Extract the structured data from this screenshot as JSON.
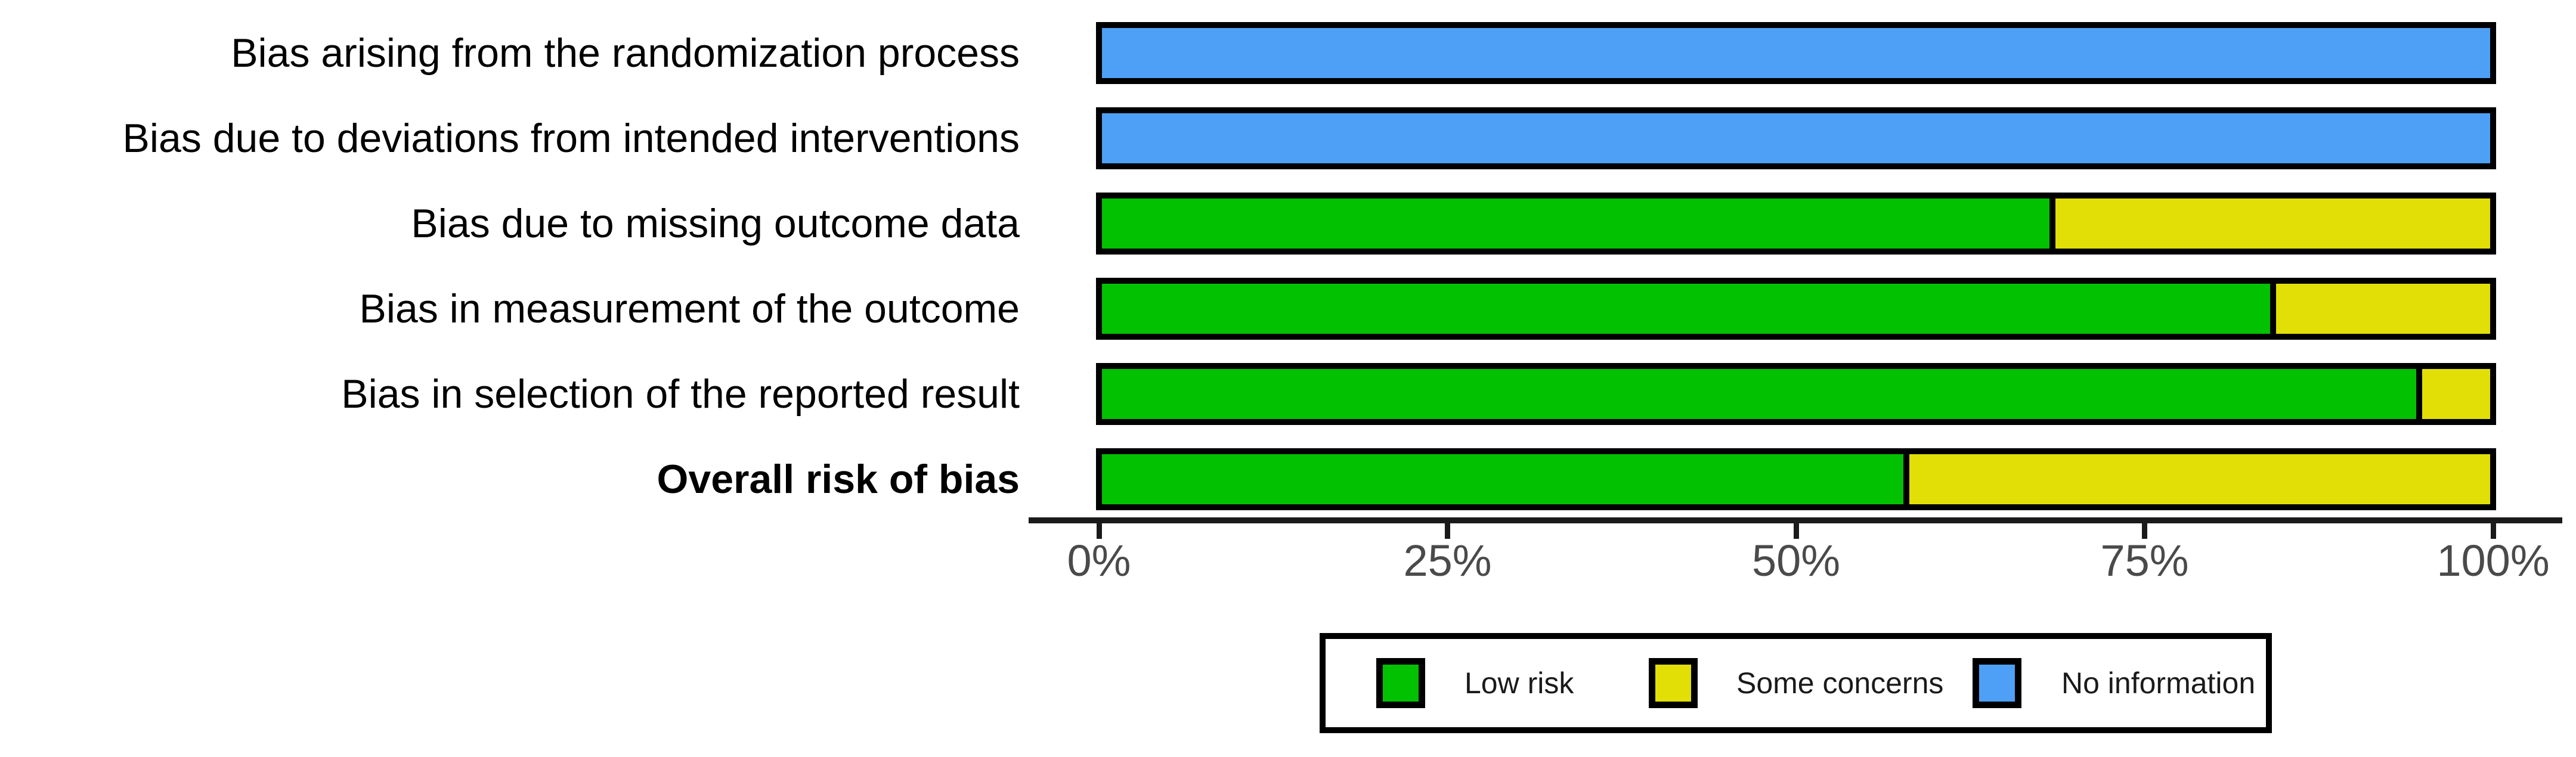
{
  "chart_data": {
    "type": "bar",
    "orientation": "horizontal",
    "stacked": true,
    "title": "",
    "xlabel": "",
    "ylabel": "",
    "xlim": [
      0,
      100
    ],
    "x_ticks": [
      "0%",
      "25%",
      "50%",
      "75%",
      "100%"
    ],
    "x_tick_values": [
      0,
      25,
      50,
      75,
      100
    ],
    "grid": false,
    "categories": [
      "Bias arising from the randomization process",
      "Bias due to deviations from intended interventions",
      "Bias due to missing outcome data",
      "Bias in measurement of the outcome",
      "Bias in selection of the reported result",
      "Overall risk of bias"
    ],
    "bold_categories": [
      "Overall risk of bias"
    ],
    "series": [
      {
        "name": "Low risk",
        "color": "#02C100",
        "values": [
          0,
          0,
          68.4,
          84.2,
          94.7,
          57.9
        ]
      },
      {
        "name": "Some concerns",
        "color": "#E2DF07",
        "values": [
          0,
          0,
          31.6,
          15.8,
          5.3,
          42.1
        ]
      },
      {
        "name": "No information",
        "color": "#4DA0F5",
        "values": [
          100,
          100,
          0,
          0,
          0,
          0
        ]
      }
    ],
    "legend": {
      "position": "bottom",
      "entries": [
        {
          "label": "Low risk",
          "color": "#02C100"
        },
        {
          "label": "Some concerns",
          "color": "#E2DF07"
        },
        {
          "label": "No information",
          "color": "#4DA0F5"
        }
      ]
    }
  },
  "style_colors": {
    "background": "#ffffff",
    "bar_border": "#000000",
    "axis_line": "#1a1a1a",
    "tick_label_text": "#4a4a4a",
    "row_label_text": "#000000",
    "legend_text": "#1a1a1a",
    "legend_border": "#000000"
  }
}
